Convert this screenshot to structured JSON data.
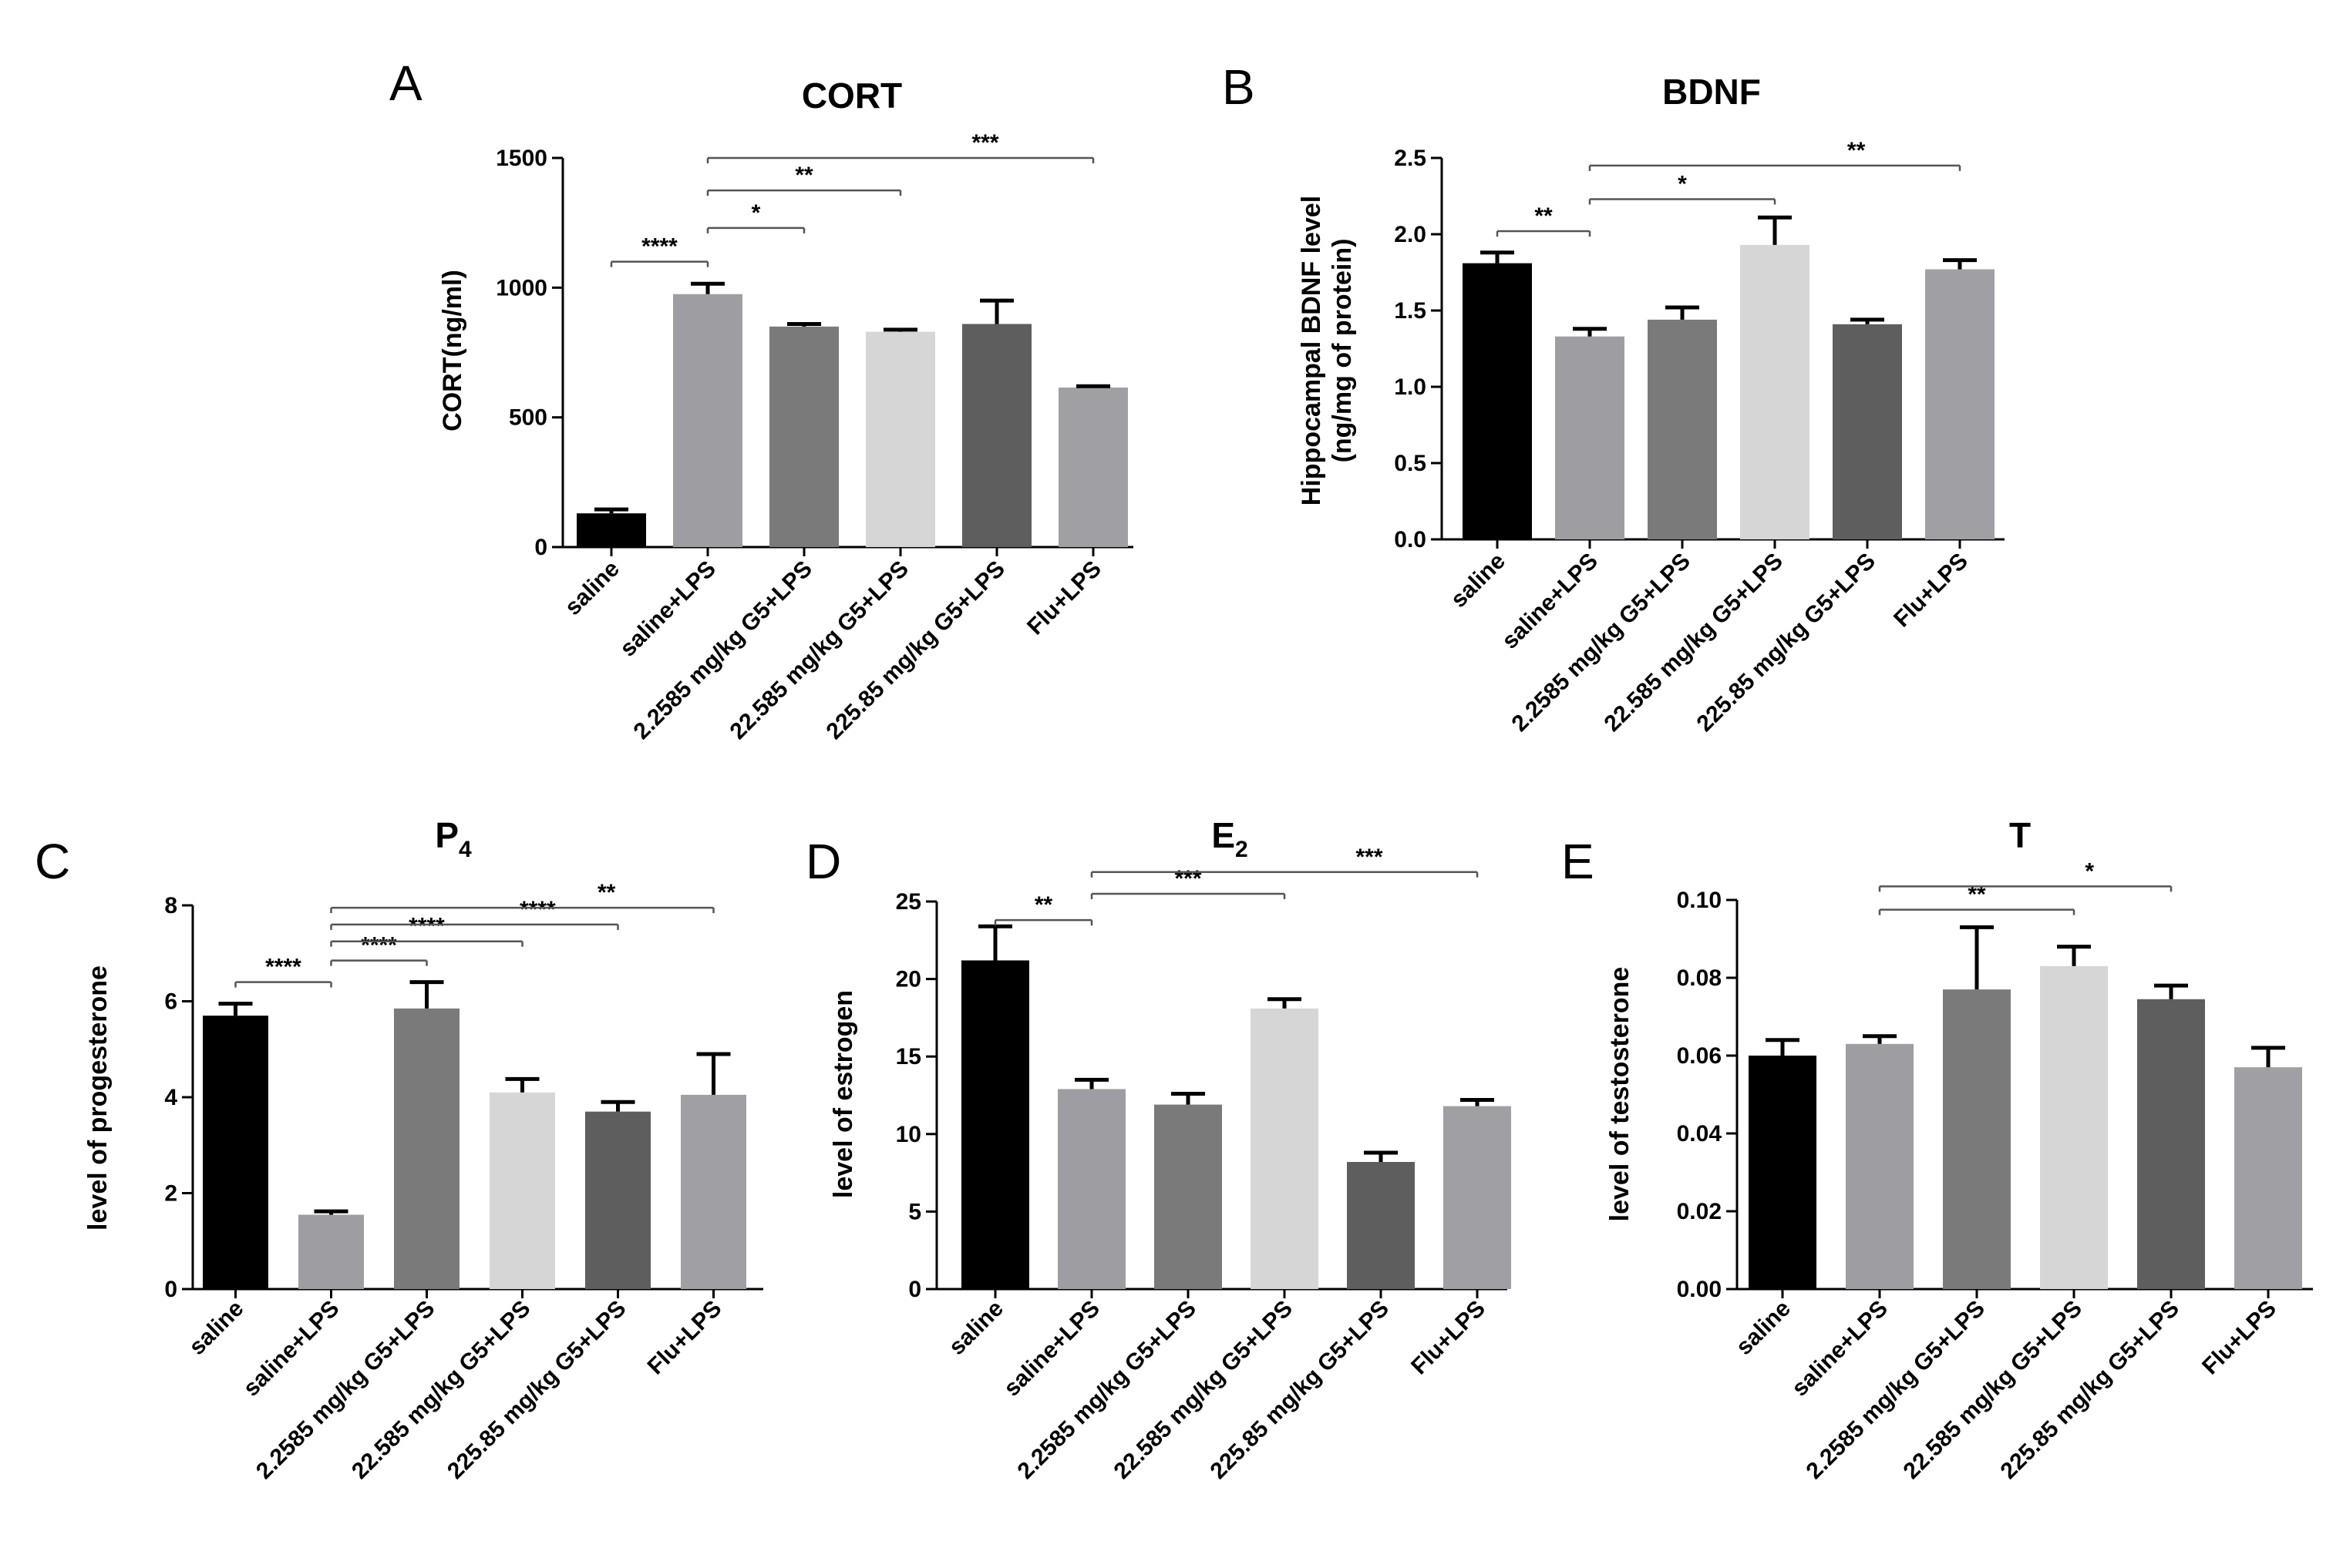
{
  "chart_data": [
    {
      "panel": "A",
      "type": "bar",
      "title": "CORT",
      "subscript": "",
      "ylabel": [
        "CORT(ng/ml)"
      ],
      "ylim": [
        0,
        1500
      ],
      "yticks": [
        "0",
        "500",
        "1000",
        "1500"
      ],
      "categories": [
        "saline",
        "saline+LPS",
        "2.2585 mg/kg G5+LPS",
        "22.585 mg/kg G5+LPS",
        "225.85 mg/kg G5+LPS",
        "Flu+LPS"
      ],
      "values": [
        130,
        975,
        850,
        830,
        860,
        615
      ],
      "errors": [
        15,
        40,
        10,
        8,
        90,
        5
      ],
      "colors": [
        "#000000",
        "#9e9ea2",
        "#7a7a7a",
        "#d6d6d6",
        "#5e5e5e",
        "#a0a0a4"
      ],
      "significance": [
        {
          "from": 0,
          "to": 1,
          "label": "****",
          "level": 1100
        },
        {
          "from": 1,
          "to": 2,
          "label": "*",
          "level": 1230
        },
        {
          "from": 1,
          "to": 3,
          "label": "**",
          "level": 1375
        },
        {
          "from": 1,
          "to": 5,
          "label": "***",
          "level": 1500
        }
      ]
    },
    {
      "panel": "B",
      "type": "bar",
      "title": "BDNF",
      "subscript": "",
      "ylabel": [
        "Hippocampal BDNF level",
        "(ng/mg of protein)"
      ],
      "ylim": [
        0,
        2.5
      ],
      "yticks": [
        "0.0",
        "0.5",
        "1.0",
        "1.5",
        "2.0",
        "2.5"
      ],
      "categories": [
        "saline",
        "saline+LPS",
        "2.2585 mg/kg G5+LPS",
        "22.585 mg/kg G5+LPS",
        "225.85 mg/kg G5+LPS",
        "Flu+LPS"
      ],
      "values": [
        1.81,
        1.33,
        1.44,
        1.93,
        1.41,
        1.77
      ],
      "errors": [
        0.07,
        0.05,
        0.08,
        0.18,
        0.03,
        0.06
      ],
      "colors": [
        "#000000",
        "#9e9ea2",
        "#7a7a7a",
        "#d6d6d6",
        "#5e5e5e",
        "#a0a0a4"
      ],
      "significance": [
        {
          "from": 0,
          "to": 1,
          "label": "**",
          "level": 2.02
        },
        {
          "from": 1,
          "to": 3,
          "label": "*",
          "level": 2.23
        },
        {
          "from": 1,
          "to": 5,
          "label": "**",
          "level": 2.45
        }
      ]
    },
    {
      "panel": "C",
      "type": "bar",
      "title": "P",
      "subscript": "4",
      "ylabel": [
        "level of progesterone"
      ],
      "ylim": [
        0,
        8
      ],
      "yticks": [
        "0",
        "2",
        "4",
        "6",
        "8"
      ],
      "categories": [
        "saline",
        "saline+LPS",
        "2.2585 mg/kg G5+LPS",
        "22.585 mg/kg G5+LPS",
        "225.85 mg/kg G5+LPS",
        "Flu+LPS"
      ],
      "values": [
        5.7,
        1.55,
        5.85,
        4.1,
        3.7,
        4.05
      ],
      "errors": [
        0.25,
        0.07,
        0.55,
        0.28,
        0.2,
        0.85
      ],
      "colors": [
        "#000000",
        "#9e9ea2",
        "#7a7a7a",
        "#d6d6d6",
        "#5e5e5e",
        "#a0a0a4"
      ],
      "significance": [
        {
          "from": 0,
          "to": 1,
          "label": "****",
          "level": 6.4
        },
        {
          "from": 1,
          "to": 2,
          "label": "****",
          "level": 6.85
        },
        {
          "from": 1,
          "to": 3,
          "label": "****",
          "level": 7.25
        },
        {
          "from": 1,
          "to": 4,
          "label": "****",
          "level": 7.6
        },
        {
          "from": 1,
          "to": 5,
          "label": "**",
          "level": 7.95
        }
      ]
    },
    {
      "panel": "D",
      "type": "bar",
      "title": "E",
      "subscript": "2",
      "ylabel": [
        "level of estrogen"
      ],
      "ylim": [
        0,
        25
      ],
      "yticks": [
        "0",
        "5",
        "10",
        "15",
        "20",
        "25"
      ],
      "categories": [
        "saline",
        "saline+LPS",
        "2.2585 mg/kg G5+LPS",
        "22.585 mg/kg G5+LPS",
        "225.85 mg/kg G5+LPS",
        "Flu+LPS"
      ],
      "values": [
        21.2,
        12.9,
        11.9,
        18.1,
        8.2,
        11.8
      ],
      "errors": [
        2.2,
        0.6,
        0.7,
        0.6,
        0.6,
        0.4
      ],
      "colors": [
        "#000000",
        "#9e9ea2",
        "#7a7a7a",
        "#d6d6d6",
        "#5e5e5e",
        "#a0a0a4"
      ],
      "significance": [
        {
          "from": 0,
          "to": 1,
          "label": "**",
          "level": 23.8
        },
        {
          "from": 1,
          "to": 3,
          "label": "***",
          "level": 25.5
        },
        {
          "from": 1,
          "to": 5,
          "label": "***",
          "level": 26.9
        }
      ]
    },
    {
      "panel": "E",
      "type": "bar",
      "title": "T",
      "subscript": "",
      "ylabel": [
        "level of testosterone"
      ],
      "ylim": [
        0,
        0.1
      ],
      "yticks": [
        "0.00",
        "0.02",
        "0.04",
        "0.06",
        "0.08",
        "0.10"
      ],
      "categories": [
        "saline",
        "saline+LPS",
        "2.2585 mg/kg G5+LPS",
        "22.585 mg/kg G5+LPS",
        "225.85 mg/kg G5+LPS",
        "Flu+LPS"
      ],
      "values": [
        0.06,
        0.063,
        0.077,
        0.083,
        0.0745,
        0.057
      ],
      "errors": [
        0.004,
        0.002,
        0.016,
        0.005,
        0.0035,
        0.005
      ],
      "colors": [
        "#000000",
        "#9e9ea2",
        "#7a7a7a",
        "#d6d6d6",
        "#5e5e5e",
        "#a0a0a4"
      ],
      "significance": [
        {
          "from": 1,
          "to": 3,
          "label": "**",
          "level": 0.0975
        },
        {
          "from": 1,
          "to": 4,
          "label": "*",
          "level": 0.1035
        }
      ]
    }
  ]
}
